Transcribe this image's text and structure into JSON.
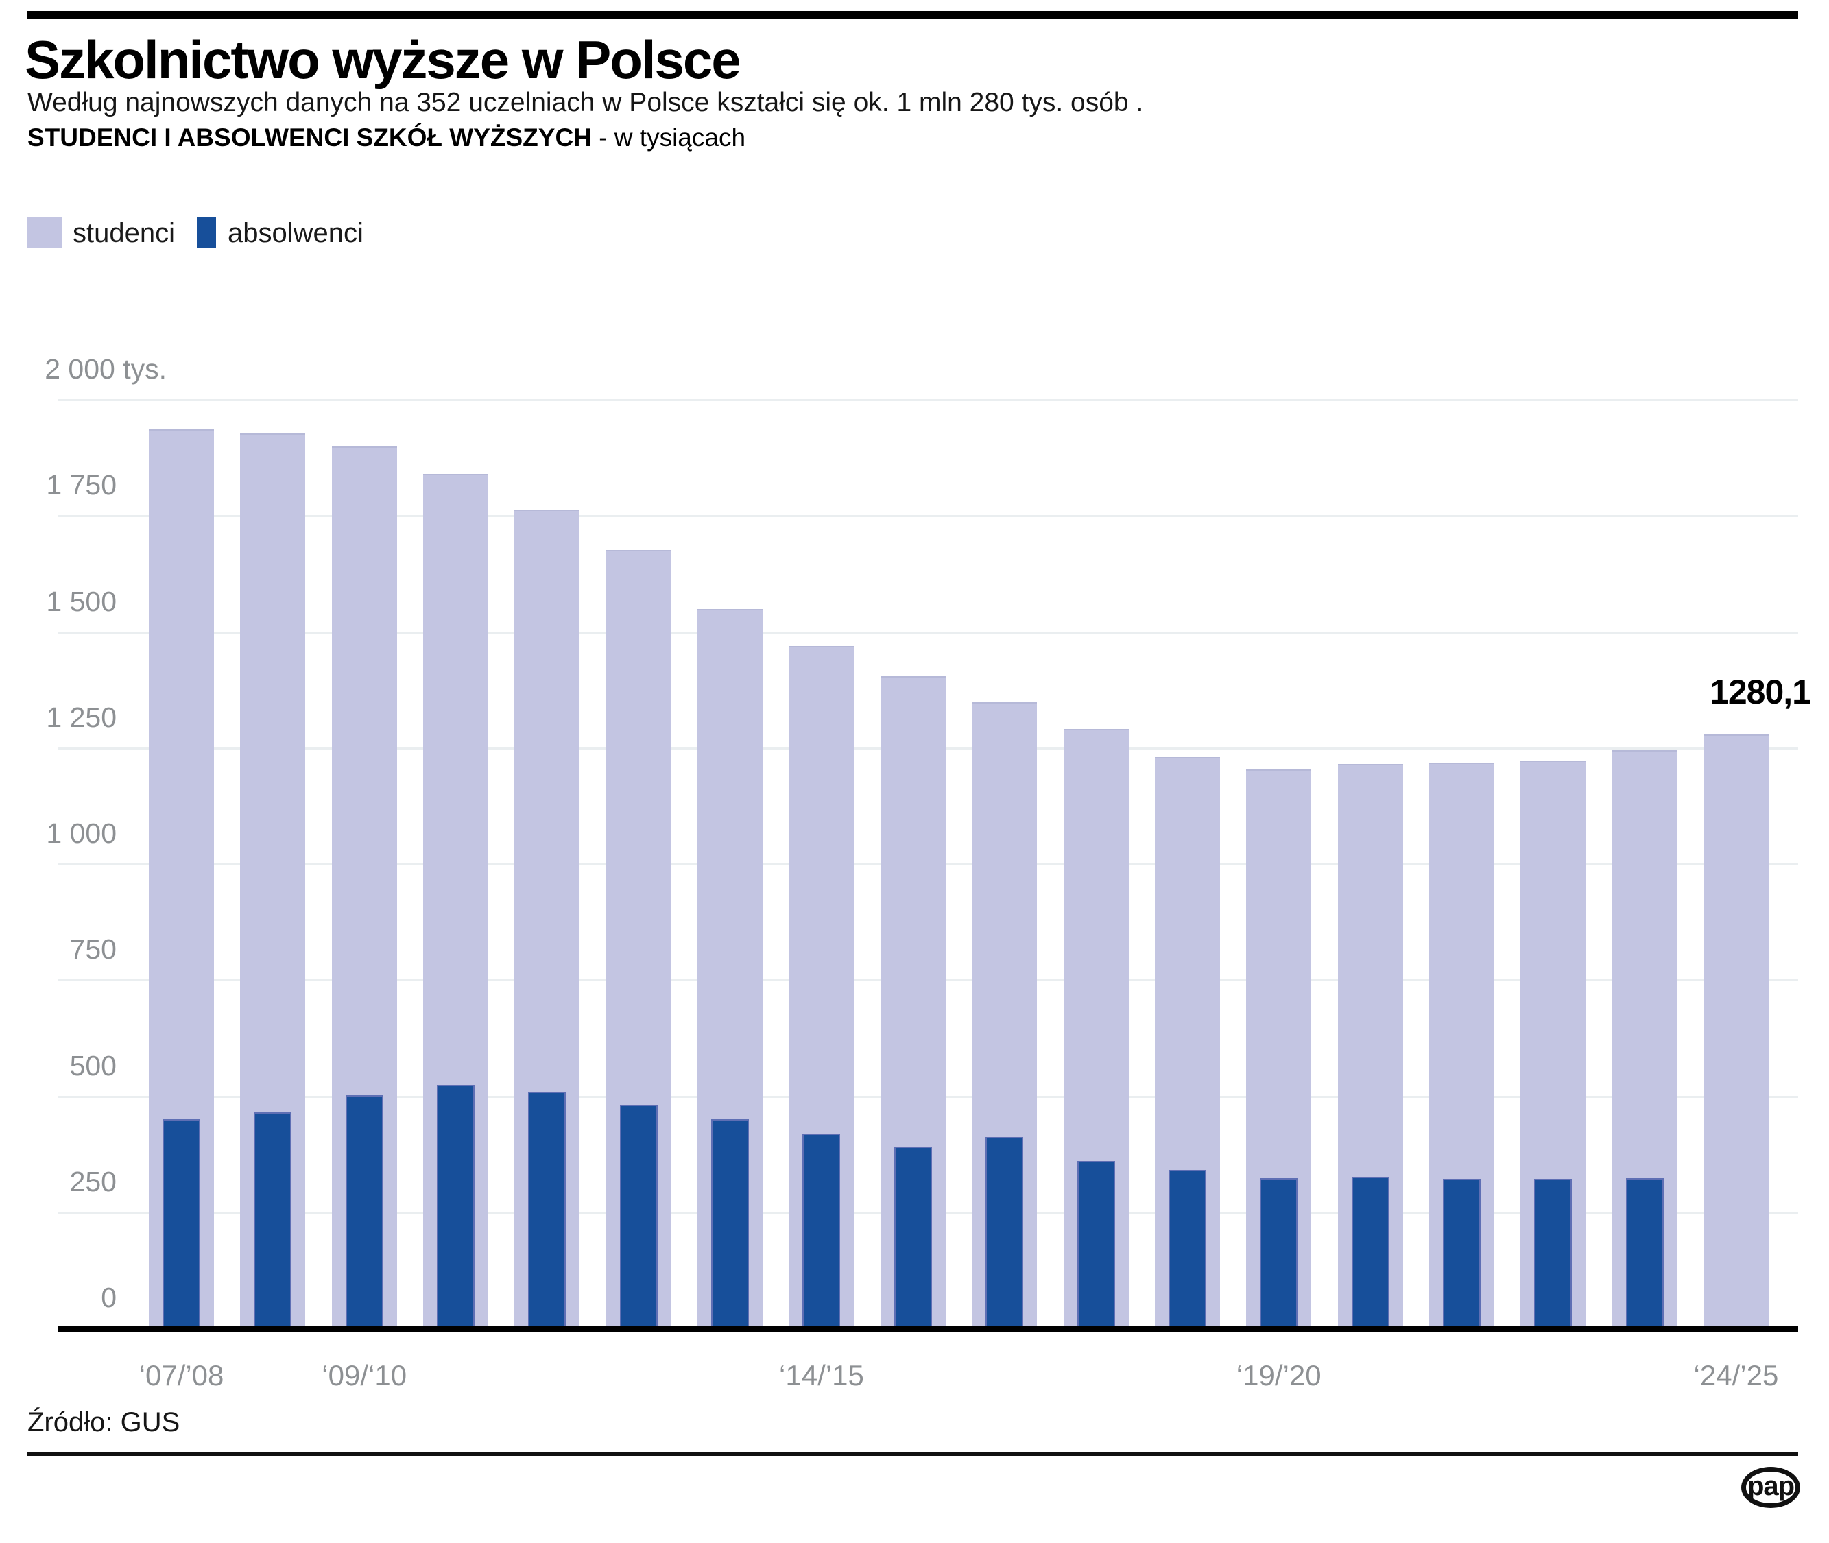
{
  "header": {
    "title": "Szkolnictwo wyższe w Polsce",
    "subtitle": "Według najnowszych danych na 352 uczelniach w Polsce kształci się ok. 1 mln 280 tys. osób ."
  },
  "chart": {
    "heading": "STUDENCI I ABSOLWENCI SZKÓŁ WYŻSZYCH",
    "heading_suffix": "- w tysiącach"
  },
  "chart_data": {
    "type": "bar",
    "title": "STUDENCI I ABSOLWENCI SZKÓŁ WYŻSZYCH - w tysiącach",
    "ylabel": "tys.",
    "ylim": [
      0,
      2000
    ],
    "grid": true,
    "legend_position": "top-left",
    "ytick_labels": [
      "2 000 tys.",
      "1 750",
      "1 500",
      "1 250",
      "1 000",
      "750",
      "500",
      "250",
      "0"
    ],
    "ytick_values": [
      2000,
      1750,
      1500,
      1250,
      1000,
      750,
      500,
      250,
      0
    ],
    "years": [
      "2007/08",
      "2008/09",
      "2009/10",
      "2010/11",
      "2011/12",
      "2012/13",
      "2013/14",
      "2014/15",
      "2015/16",
      "2016/17",
      "2017/18",
      "2018/19",
      "2019/20",
      "2020/21",
      "2021/22",
      "2022/23",
      "2023/24",
      "2024/25"
    ],
    "x_ticks": [
      {
        "index": 0,
        "label": "‘07/’08"
      },
      {
        "index": 2,
        "label": "‘09/‘10"
      },
      {
        "index": 7,
        "label": "‘14/’15"
      },
      {
        "index": 12,
        "label": "‘19/’20"
      },
      {
        "index": 17,
        "label": "‘24/’25"
      }
    ],
    "series": [
      {
        "name": "studenci",
        "color": "#c3c5e2",
        "values": [
          1937.4,
          1927.8,
          1900.0,
          1841.3,
          1764.1,
          1676.9,
          1549.9,
          1469.4,
          1405.1,
          1348.8,
          1291.9,
          1230.3,
          1204.0,
          1215.3,
          1218.2,
          1223.6,
          1246.0,
          1280.1
        ]
      },
      {
        "name": "absolwenci",
        "color": "#174f9a",
        "values": [
          450,
          466,
          503,
          525,
          510,
          481,
          451,
          420,
          391,
          412,
          360,
          342,
          323,
          326,
          322,
          322,
          323
        ]
      }
    ],
    "annotation": {
      "index": 17,
      "label": "1280,1"
    }
  },
  "footer": {
    "source": "Źródło: GUS",
    "logo_text": "pap"
  }
}
